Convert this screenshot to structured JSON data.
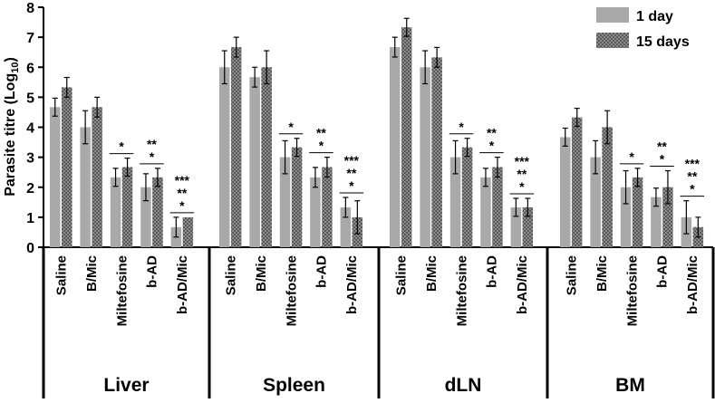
{
  "chart_data": {
    "type": "bar",
    "ylabel_main": "Parasite titre (Log",
    "ylabel_sub": "10",
    "ylabel_close": ")",
    "ylim": [
      0,
      8
    ],
    "yticks": [
      "0",
      "1",
      "2",
      "3",
      "4",
      "5",
      "6",
      "7",
      "8"
    ],
    "grid": false,
    "legend_position": "top-right",
    "categories": [
      "Saline",
      "B/Mic",
      "Miltefosine",
      "b-AD",
      "b-AD/Mic"
    ],
    "groups": [
      "Liver",
      "Spleen",
      "dLN",
      "BM"
    ],
    "series": [
      {
        "name": "1 day",
        "color": "#a9a9a9",
        "pattern": "solid"
      },
      {
        "name": "15 days",
        "color": "#8a8a8a",
        "pattern": "dotted"
      }
    ],
    "data": {
      "Liver": {
        "1 day": {
          "values": [
            4.67,
            4.0,
            2.33,
            2.0,
            0.67
          ],
          "errors": [
            0.3,
            0.55,
            0.3,
            0.45,
            0.33
          ]
        },
        "15 days": {
          "values": [
            5.33,
            4.67,
            2.67,
            2.33,
            1.0
          ],
          "errors": [
            0.33,
            0.33,
            0.3,
            0.3,
            0.0
          ]
        }
      },
      "Spleen": {
        "1 day": {
          "values": [
            6.0,
            5.67,
            3.0,
            2.33,
            1.33
          ],
          "errors": [
            0.55,
            0.33,
            0.55,
            0.33,
            0.33
          ]
        },
        "15 days": {
          "values": [
            6.67,
            6.0,
            3.33,
            2.67,
            1.0
          ],
          "errors": [
            0.33,
            0.55,
            0.3,
            0.33,
            0.55
          ]
        }
      },
      "dLN": {
        "1 day": {
          "values": [
            6.67,
            6.0,
            3.0,
            2.33,
            1.33
          ],
          "errors": [
            0.33,
            0.55,
            0.55,
            0.3,
            0.3
          ]
        },
        "15 days": {
          "values": [
            7.33,
            6.33,
            3.33,
            2.67,
            1.33
          ],
          "errors": [
            0.3,
            0.33,
            0.3,
            0.33,
            0.3
          ]
        }
      },
      "BM": {
        "1 day": {
          "values": [
            3.67,
            3.0,
            2.0,
            1.67,
            1.0
          ],
          "errors": [
            0.3,
            0.55,
            0.55,
            0.3,
            0.55
          ]
        },
        "15 days": {
          "values": [
            4.33,
            4.0,
            2.33,
            2.0,
            0.67
          ],
          "errors": [
            0.3,
            0.55,
            0.3,
            0.55,
            0.33
          ]
        }
      }
    },
    "significance": [
      {
        "category": "Miltefosine",
        "marks": [
          "*"
        ]
      },
      {
        "category": "b-AD",
        "marks": [
          "**",
          "*"
        ]
      },
      {
        "category": "b-AD/Mic",
        "marks": [
          "***",
          "**",
          "*"
        ]
      }
    ]
  }
}
